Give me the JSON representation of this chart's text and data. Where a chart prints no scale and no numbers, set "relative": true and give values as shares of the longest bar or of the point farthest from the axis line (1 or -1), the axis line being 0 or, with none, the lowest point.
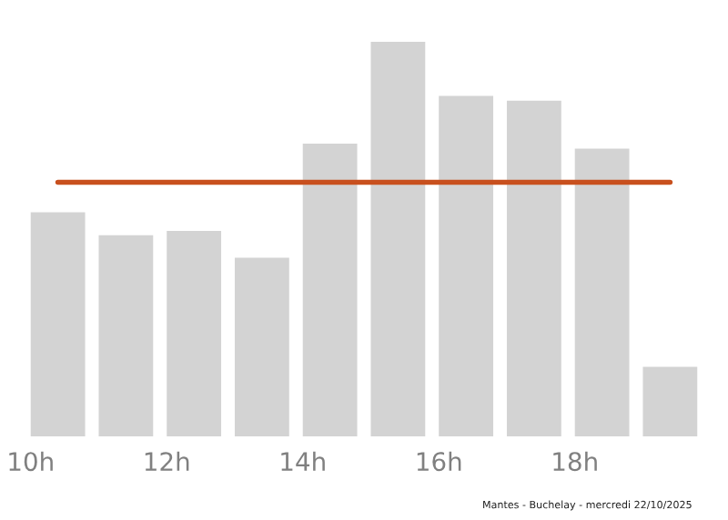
{
  "chart_data": {
    "type": "bar",
    "relative": true,
    "categories": [
      "10h",
      null,
      "12h",
      null,
      "14h",
      null,
      "16h",
      null,
      "18h",
      null
    ],
    "values": [
      0.568,
      0.51,
      0.521,
      0.453,
      0.742,
      1,
      0.863,
      0.851,
      0.729,
      0.176
    ],
    "color": "#d3d3d3",
    "ref_lines": [
      {
        "axis": "y",
        "value": 0.644,
        "color": "#c8501e"
      }
    ],
    "annotations": [
      "Mantes - Buchelay - mercredi 22/10/2025"
    ]
  }
}
